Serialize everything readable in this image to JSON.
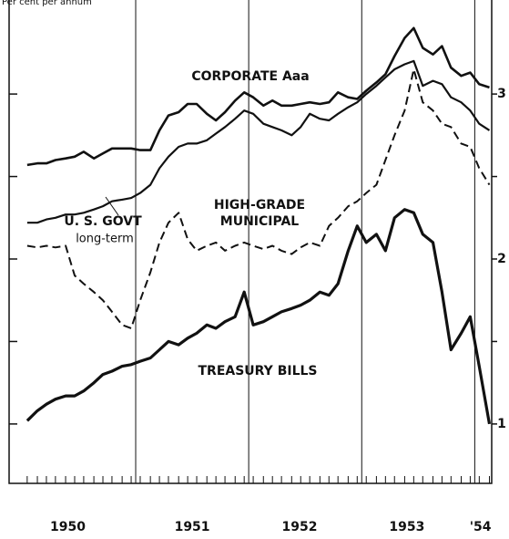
{
  "chart_data": {
    "type": "line",
    "title": "Per cent per annum",
    "annotations": [
      "CORPORATE Aaa",
      "U. S. GOVT",
      "long-term",
      "HIGH-GRADE",
      "MUNICIPAL",
      "TREASURY BILLS"
    ],
    "x": [
      1950.04,
      1950.13,
      1950.21,
      1950.29,
      1950.38,
      1950.46,
      1950.54,
      1950.63,
      1950.71,
      1950.79,
      1950.88,
      1950.96,
      1951.04,
      1951.13,
      1951.21,
      1951.29,
      1951.38,
      1951.46,
      1951.54,
      1951.63,
      1951.71,
      1951.79,
      1951.88,
      1951.96,
      1952.04,
      1952.13,
      1952.21,
      1952.29,
      1952.38,
      1952.46,
      1952.54,
      1952.63,
      1952.71,
      1952.79,
      1952.88,
      1952.96,
      1953.04,
      1953.13,
      1953.21,
      1953.29,
      1953.38,
      1953.46,
      1953.54,
      1953.63,
      1953.71,
      1953.79,
      1953.88,
      1953.96,
      1954.04,
      1954.13
    ],
    "series": [
      {
        "name": "CORPORATE Aaa",
        "color": "#111111",
        "width": 2.6,
        "dashed": false,
        "values": [
          2.57,
          2.58,
          2.58,
          2.6,
          2.61,
          2.62,
          2.65,
          2.61,
          2.64,
          2.67,
          2.67,
          2.67,
          2.66,
          2.66,
          2.78,
          2.87,
          2.89,
          2.94,
          2.94,
          2.88,
          2.84,
          2.89,
          2.96,
          3.01,
          2.98,
          2.93,
          2.96,
          2.93,
          2.93,
          2.94,
          2.95,
          2.94,
          2.95,
          3.01,
          2.98,
          2.97,
          3.02,
          3.07,
          3.12,
          3.23,
          3.34,
          3.4,
          3.28,
          3.24,
          3.29,
          3.16,
          3.11,
          3.13,
          3.06,
          3.04
        ]
      },
      {
        "name": "U. S. GOVT long-term",
        "color": "#111111",
        "width": 2.2,
        "dashed": false,
        "values": [
          2.22,
          2.22,
          2.24,
          2.25,
          2.27,
          2.27,
          2.28,
          2.3,
          2.32,
          2.35,
          2.36,
          2.37,
          2.4,
          2.45,
          2.55,
          2.62,
          2.68,
          2.7,
          2.7,
          2.72,
          2.76,
          2.8,
          2.85,
          2.9,
          2.88,
          2.82,
          2.8,
          2.78,
          2.75,
          2.8,
          2.88,
          2.85,
          2.84,
          2.88,
          2.92,
          2.95,
          3.0,
          3.05,
          3.1,
          3.15,
          3.18,
          3.2,
          3.05,
          3.08,
          3.06,
          2.98,
          2.95,
          2.9,
          2.82,
          2.78
        ]
      },
      {
        "name": "HIGH-GRADE MUNICIPAL",
        "color": "#111111",
        "width": 2.0,
        "dashed": true,
        "values": [
          2.08,
          2.07,
          2.08,
          2.07,
          2.08,
          1.9,
          1.85,
          1.8,
          1.75,
          1.68,
          1.6,
          1.58,
          1.75,
          1.92,
          2.1,
          2.22,
          2.28,
          2.12,
          2.05,
          2.08,
          2.1,
          2.05,
          2.08,
          2.1,
          2.08,
          2.06,
          2.08,
          2.05,
          2.03,
          2.07,
          2.1,
          2.08,
          2.2,
          2.25,
          2.32,
          2.35,
          2.4,
          2.45,
          2.6,
          2.75,
          2.9,
          3.15,
          2.95,
          2.9,
          2.82,
          2.8,
          2.7,
          2.68,
          2.55,
          2.45
        ]
      },
      {
        "name": "TREASURY BILLS",
        "color": "#111111",
        "width": 3.2,
        "dashed": false,
        "values": [
          1.02,
          1.08,
          1.12,
          1.15,
          1.17,
          1.17,
          1.2,
          1.25,
          1.3,
          1.32,
          1.35,
          1.36,
          1.38,
          1.4,
          1.45,
          1.5,
          1.48,
          1.52,
          1.55,
          1.6,
          1.58,
          1.62,
          1.65,
          1.8,
          1.6,
          1.62,
          1.65,
          1.68,
          1.7,
          1.72,
          1.75,
          1.8,
          1.78,
          1.85,
          2.05,
          2.2,
          2.1,
          2.15,
          2.05,
          2.25,
          2.3,
          2.28,
          2.15,
          2.1,
          1.8,
          1.45,
          1.55,
          1.65,
          1.35,
          1.0
        ]
      }
    ],
    "xlim": [
      1949.88,
      1954.15
    ],
    "xticks": [
      1951,
      1952,
      1953,
      1954
    ],
    "year_labels": [
      {
        "value": 1950.4,
        "label": "1950"
      },
      {
        "value": 1951.5,
        "label": "1951"
      },
      {
        "value": 1952.45,
        "label": "1952"
      },
      {
        "value": 1953.4,
        "label": "1953"
      },
      {
        "value": 1954.05,
        "label": "'54"
      }
    ],
    "ylim": [
      0.64,
      3.57
    ],
    "yticks": [
      1,
      2,
      3
    ],
    "minor_yticks": [
      1.5,
      2.5
    ],
    "grid": true
  }
}
